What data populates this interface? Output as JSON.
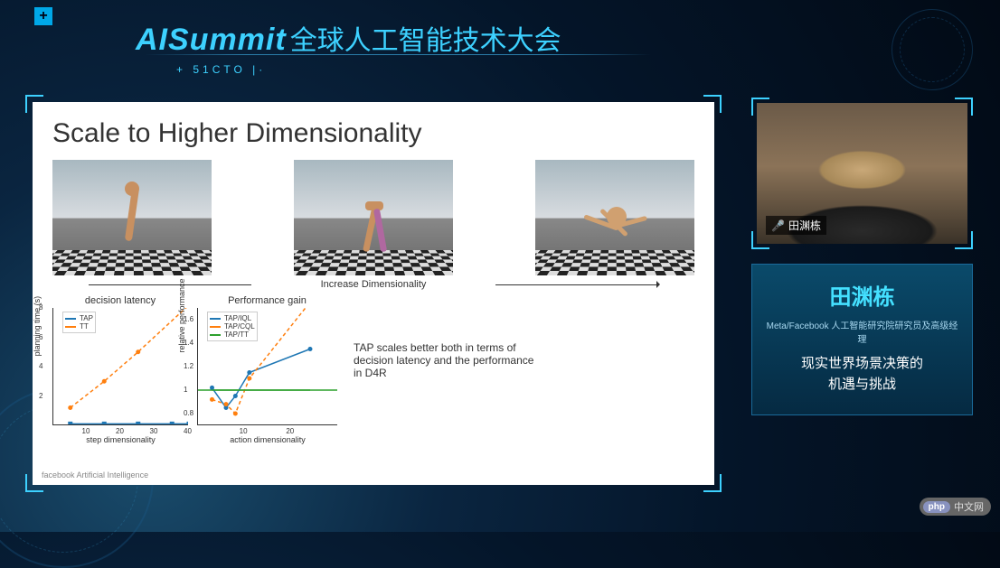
{
  "header": {
    "plus_symbol": "+",
    "logo_text": "AISummit",
    "cn_text": "全球人工智能技术大会",
    "sub_prefix": "+",
    "sub_text": "51CTO",
    "sub_suffix": "|·"
  },
  "slide": {
    "title": "Scale to Higher Dimensionality",
    "dim_label": "Increase Dimensionality",
    "footer_brand": "facebook Artificial Intelligence",
    "sims": [
      {
        "name": "hopper",
        "sky": "#b0bcc2",
        "floor_a": "#1a1a1a",
        "floor_b": "#e0e0e0",
        "agent_color": "#c89060"
      },
      {
        "name": "walker",
        "sky": "#b0bcc2",
        "floor_a": "#1a1a1a",
        "floor_b": "#e0e0e0",
        "agent_color": "#c89060",
        "agent_color2": "#b068a0"
      },
      {
        "name": "ant",
        "sky": "#9aa8b4",
        "floor_a": "#1a1a1a",
        "floor_b": "#e0e0e0",
        "agent_color": "#d0a070"
      }
    ],
    "chart1": {
      "type": "line",
      "title": "decision latency",
      "xlabel": "step dimensionality",
      "ylabel": "planning time (s)",
      "xlim": [
        0,
        40
      ],
      "ylim": [
        0,
        8
      ],
      "xticks": [
        10,
        20,
        30,
        40
      ],
      "yticks": [
        2,
        4,
        6,
        8
      ],
      "series": [
        {
          "name": "TAP",
          "color": "#1f77b4",
          "dashed": false,
          "marker": "square",
          "x": [
            5,
            15,
            25,
            35,
            40
          ],
          "y": [
            0.1,
            0.1,
            0.1,
            0.1,
            0.1
          ]
        },
        {
          "name": "TT",
          "color": "#ff7f0e",
          "dashed": true,
          "marker": "circle",
          "x": [
            5,
            15,
            25,
            40
          ],
          "y": [
            1.2,
            3.0,
            5.0,
            8.2
          ]
        }
      ]
    },
    "chart2": {
      "type": "line",
      "title": "Performance gain",
      "xlabel": "action dimensionality",
      "ylabel": "relative performance",
      "xlim": [
        0,
        30
      ],
      "ylim": [
        0.7,
        1.7
      ],
      "xticks": [
        10,
        20
      ],
      "yticks": [
        0.8,
        1.0,
        1.2,
        1.4,
        1.6
      ],
      "baseline_y": 1.0,
      "baseline_color": "#2ca02c",
      "series": [
        {
          "name": "TAP/IQL",
          "color": "#1f77b4",
          "dashed": false,
          "marker": "circle",
          "x": [
            3,
            6,
            8,
            11,
            24
          ],
          "y": [
            1.02,
            0.85,
            0.95,
            1.15,
            1.35
          ]
        },
        {
          "name": "TAP/CQL",
          "color": "#ff7f0e",
          "dashed": true,
          "marker": "circle",
          "x": [
            3,
            6,
            8,
            11,
            24
          ],
          "y": [
            0.92,
            0.88,
            0.8,
            1.1,
            1.75
          ]
        },
        {
          "name": "TAP/TT",
          "color": "#2ca02c",
          "dashed": false,
          "marker": "none",
          "x": [
            3,
            24
          ],
          "y": [
            1.0,
            1.0
          ]
        }
      ]
    },
    "caption": "TAP scales better both in terms of decision latency and the performance in D4R"
  },
  "speaker": {
    "name_tag": "田渊栋",
    "info_name": "田渊栋",
    "info_role": "Meta/Facebook 人工智能研究院研究员及高级经理",
    "info_topic_l1": "现实世界场景决策的",
    "info_topic_l2": "机遇与挑战"
  },
  "watermark": {
    "logo": "php",
    "text": "中文网"
  },
  "colors": {
    "accent": "#3dd1ff",
    "bg_deep": "#041529",
    "card_border": "#1a6a9a"
  }
}
